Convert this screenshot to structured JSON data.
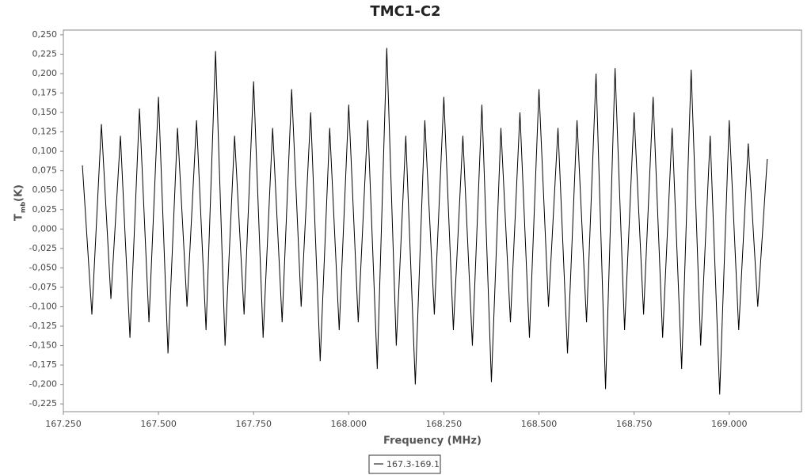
{
  "chart_data": {
    "type": "line",
    "title": "TMC1-C2",
    "xlabel": "Frequency (MHz)",
    "ylabel": "T",
    "ylabel_sub": "mb",
    "ylabel_unit": "(K)",
    "x": [
      167.3,
      167.325,
      167.35,
      167.375,
      167.4,
      167.425,
      167.45,
      167.475,
      167.5,
      167.525,
      167.55,
      167.575,
      167.6,
      167.625,
      167.65,
      167.675,
      167.7,
      167.725,
      167.75,
      167.775,
      167.8,
      167.825,
      167.85,
      167.875,
      167.9,
      167.925,
      167.95,
      167.975,
      168.0,
      168.025,
      168.05,
      168.075,
      168.1,
      168.125,
      168.15,
      168.175,
      168.2,
      168.225,
      168.25,
      168.275,
      168.3,
      168.325,
      168.35,
      168.375,
      168.4,
      168.425,
      168.45,
      168.475,
      168.5,
      168.525,
      168.55,
      168.575,
      168.6,
      168.625,
      168.65,
      168.675,
      168.7,
      168.725,
      168.75,
      168.775,
      168.8,
      168.825,
      168.85,
      168.875,
      168.9,
      168.925,
      168.95,
      168.975,
      169.0,
      169.025,
      169.05,
      169.075,
      169.1
    ],
    "series": [
      {
        "name": "167.3-169.1",
        "color": "#000000",
        "values": [
          0.082,
          -0.11,
          0.135,
          -0.09,
          0.12,
          -0.14,
          0.155,
          -0.12,
          0.17,
          -0.16,
          0.13,
          -0.1,
          0.14,
          -0.13,
          0.229,
          -0.15,
          0.12,
          -0.11,
          0.19,
          -0.14,
          0.13,
          -0.12,
          0.18,
          -0.1,
          0.15,
          -0.17,
          0.13,
          -0.13,
          0.16,
          -0.12,
          0.14,
          -0.18,
          0.233,
          -0.15,
          0.12,
          -0.2,
          0.14,
          -0.11,
          0.17,
          -0.13,
          0.12,
          -0.15,
          0.16,
          -0.197,
          0.13,
          -0.12,
          0.15,
          -0.14,
          0.18,
          -0.1,
          0.13,
          -0.16,
          0.14,
          -0.12,
          0.2,
          -0.206,
          0.207,
          -0.13,
          0.15,
          -0.11,
          0.17,
          -0.14,
          0.13,
          -0.18,
          0.205,
          -0.15,
          0.12,
          -0.213,
          0.14,
          -0.13,
          0.11,
          -0.1,
          0.09
        ]
      }
    ],
    "xlim": [
      167.25,
      169.19
    ],
    "ylim": [
      -0.235,
      0.256
    ],
    "xticks": [
      {
        "value": 167.25,
        "label": "167.250"
      },
      {
        "value": 167.5,
        "label": "167.500"
      },
      {
        "value": 167.75,
        "label": "167.750"
      },
      {
        "value": 168,
        "label": "168.000"
      },
      {
        "value": 168.25,
        "label": "168.250"
      },
      {
        "value": 168.5,
        "label": "168.500"
      },
      {
        "value": 168.75,
        "label": "168.750"
      },
      {
        "value": 169,
        "label": "169.000"
      }
    ],
    "yticks": [
      {
        "value": -0.225,
        "label": "-0,225"
      },
      {
        "value": -0.2,
        "label": "-0,200"
      },
      {
        "value": -0.175,
        "label": "-0,175"
      },
      {
        "value": -0.15,
        "label": "-0,150"
      },
      {
        "value": -0.125,
        "label": "-0,125"
      },
      {
        "value": -0.1,
        "label": "-0,100"
      },
      {
        "value": -0.075,
        "label": "-0,075"
      },
      {
        "value": -0.05,
        "label": "-0,050"
      },
      {
        "value": -0.025,
        "label": "-0,025"
      },
      {
        "value": 0,
        "label": "0,000"
      },
      {
        "value": 0.025,
        "label": "0,025"
      },
      {
        "value": 0.05,
        "label": "0,050"
      },
      {
        "value": 0.075,
        "label": "0,075"
      },
      {
        "value": 0.1,
        "label": "0,100"
      },
      {
        "value": 0.125,
        "label": "0,125"
      },
      {
        "value": 0.15,
        "label": "0,150"
      },
      {
        "value": 0.175,
        "label": "0,175"
      },
      {
        "value": 0.2,
        "label": "0,200"
      },
      {
        "value": 0.225,
        "label": "0,225"
      },
      {
        "value": 0.25,
        "label": "0,250"
      }
    ],
    "grid": false,
    "legend": "bottom"
  }
}
